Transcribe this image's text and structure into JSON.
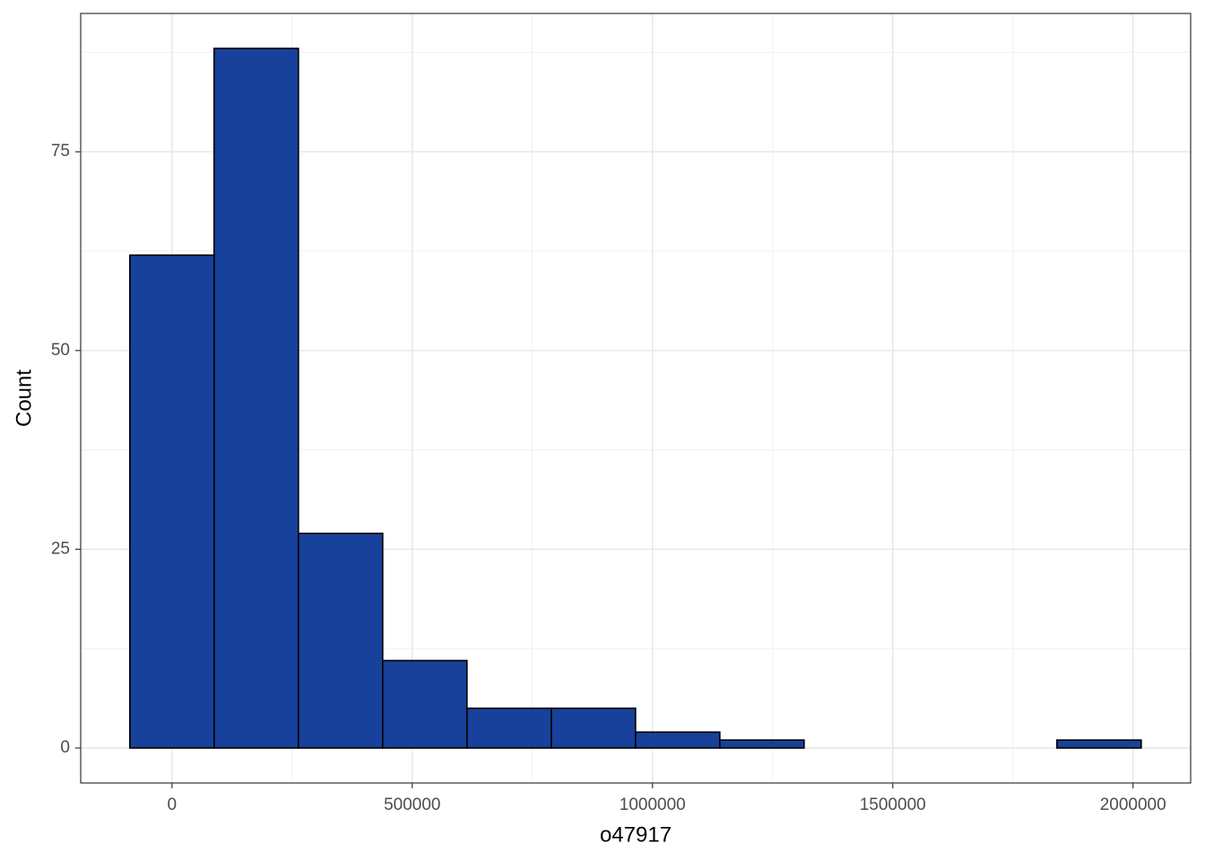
{
  "chart_data": {
    "type": "histogram",
    "x_label": "o47917",
    "y_label": "Count",
    "bins": [
      -87700,
      87700,
      263100,
      438500,
      613900,
      789300,
      964700,
      1140100,
      1315500,
      1490900,
      1666300,
      1841700,
      2017100
    ],
    "counts": [
      62,
      88,
      27,
      11,
      5,
      5,
      2,
      1,
      0,
      0,
      0,
      1
    ],
    "color": "#17419a",
    "edge_color": "#000000",
    "xlim": [
      -190000,
      2120000
    ],
    "ylim": [
      -4.4,
      92.4
    ],
    "xticks": [
      0,
      500000,
      1000000,
      1500000,
      2000000
    ],
    "yticks": [
      0,
      25,
      50,
      75
    ],
    "x_minor_ticks": [
      250000,
      750000,
      1250000,
      1750000
    ],
    "y_minor_ticks": [
      12.5,
      37.5,
      62.5,
      87.5
    ],
    "grid": true
  }
}
